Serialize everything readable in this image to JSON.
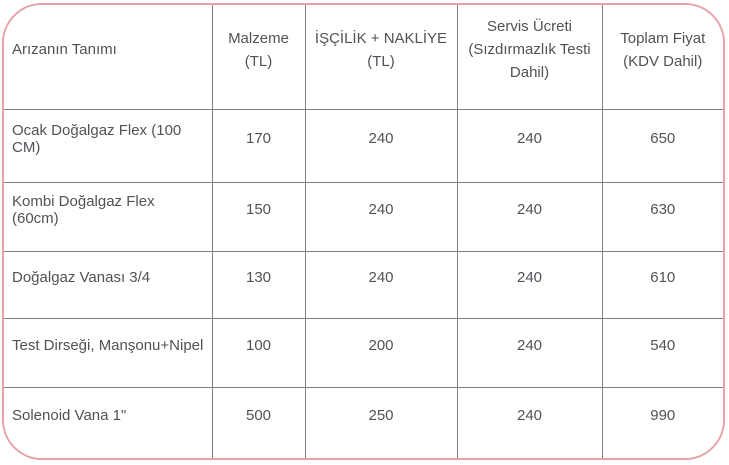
{
  "table": {
    "headers": [
      {
        "id": "fault-description",
        "lines": [
          "Arızanın Tanımı"
        ]
      },
      {
        "id": "material",
        "lines": [
          "Malzeme",
          "(TL)"
        ]
      },
      {
        "id": "labor-transport",
        "lines": [
          "İŞÇİLİK + NAKLİYE",
          "(TL)"
        ]
      },
      {
        "id": "service-fee",
        "lines": [
          "Servis Ücreti",
          "(Sızdırmazlık Testi",
          "Dahil)"
        ]
      },
      {
        "id": "total-price",
        "lines": [
          "Toplam Fiyat",
          "(KDV Dahil)"
        ]
      }
    ],
    "rows": [
      [
        "Ocak Doğalgaz Flex (100 CM)",
        "170",
        "240",
        "240",
        "650"
      ],
      [
        "Kombi Doğalgaz Flex (60cm)",
        "150",
        "240",
        "240",
        "630"
      ],
      [
        "Doğalgaz Vanası 3/4",
        "130",
        "240",
        "240",
        "610"
      ],
      [
        "Test Dirseği, Manşonu+Nipel",
        "100",
        "200",
        "240",
        "540"
      ],
      [
        "Solenoid Vana 1\"",
        "500",
        "250",
        "240",
        "990"
      ]
    ]
  },
  "colors": {
    "outer_border": "#e8a2a4",
    "grid_border": "#7d7f82",
    "text": "#4f5357",
    "background": "#ffffff"
  }
}
